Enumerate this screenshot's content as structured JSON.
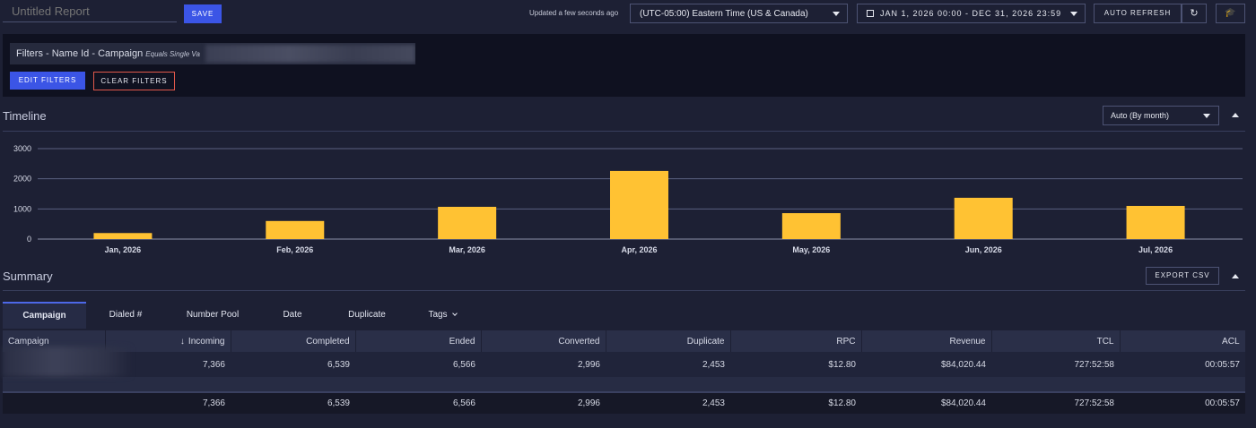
{
  "header": {
    "report_title_placeholder": "Untitled Report",
    "save_label": "SAVE",
    "updated_text": "Updated a few seconds ago",
    "timezone": "(UTC-05:00) Eastern Time (US & Canada)",
    "date_range": "JAN 1, 2026 00:00 - DEC 31, 2026 23:59",
    "auto_refresh_label": "AUTO REFRESH",
    "refresh_icon": "refresh-icon",
    "graduation_icon": "graduation-cap-icon"
  },
  "filters": {
    "chip_label": "Filters - Name Id - Campaign",
    "chip_operator": "Equals Single Va",
    "edit_label": "EDIT FILTERS",
    "clear_label": "CLEAR FILTERS"
  },
  "timeline": {
    "title": "Timeline",
    "granularity": "Auto (By month)"
  },
  "chart_data": {
    "type": "bar",
    "categories": [
      "Jan, 2026",
      "Feb, 2026",
      "Mar, 2026",
      "Apr, 2026",
      "May, 2026",
      "Jun, 2026",
      "Jul, 2026"
    ],
    "values": [
      200,
      600,
      1070,
      2260,
      860,
      1370,
      1100
    ],
    "yticks": [
      0,
      1000,
      2000,
      3000
    ],
    "ylim": [
      0,
      3000
    ],
    "grid": true,
    "bar_color": "#ffc233"
  },
  "summary": {
    "title": "Summary",
    "export_label": "EXPORT CSV",
    "tabs": [
      {
        "label": "Campaign"
      },
      {
        "label": "Dialed #"
      },
      {
        "label": "Number Pool"
      },
      {
        "label": "Date"
      },
      {
        "label": "Duplicate"
      },
      {
        "label": "Tags"
      }
    ],
    "columns": [
      "Campaign",
      "Incoming",
      "Completed",
      "Ended",
      "Converted",
      "Duplicate",
      "RPC",
      "Revenue",
      "TCL",
      "ACL"
    ],
    "row": [
      "",
      "7,366",
      "6,539",
      "6,566",
      "2,996",
      "2,453",
      "$12.80",
      "$84,020.44",
      "727:52:58",
      "00:05:57"
    ],
    "totals": [
      "",
      "7,366",
      "6,539",
      "6,566",
      "2,996",
      "2,453",
      "$12.80",
      "$84,020.44",
      "727:52:58",
      "00:05:57"
    ]
  }
}
